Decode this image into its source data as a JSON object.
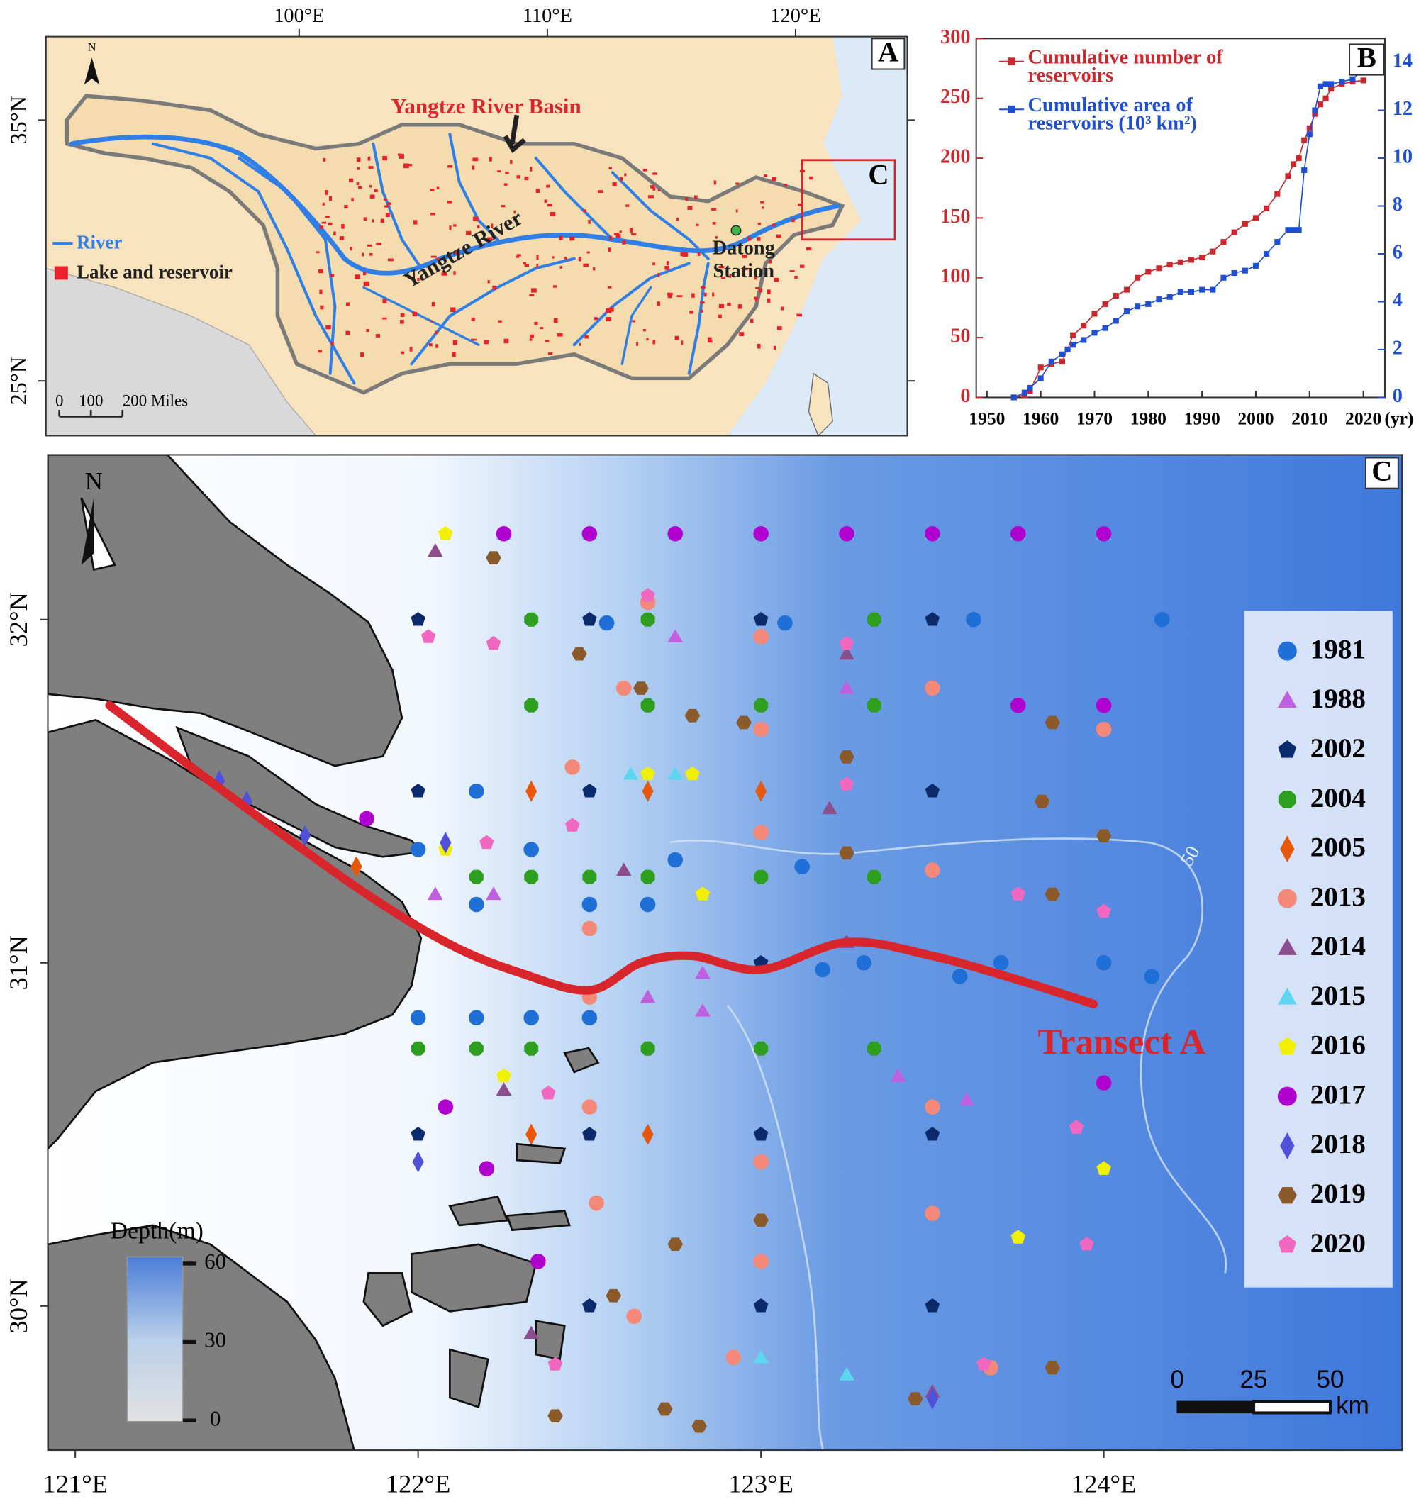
{
  "panel_a": {
    "label": "A",
    "box_label": "C",
    "title": "Yangtze River Basin",
    "river_label": "Yangtze River",
    "north": "N",
    "xlim": [
      89.8,
      124.5
    ],
    "ylim": [
      22.9,
      38.2
    ],
    "xticks": [
      {
        "value": 100,
        "label": "100°E"
      },
      {
        "value": 110,
        "label": "110°E"
      },
      {
        "value": 120,
        "label": "120°E"
      }
    ],
    "yticks": [
      {
        "value": 25,
        "label": "25°N"
      },
      {
        "value": 35,
        "label": "35°N"
      }
    ],
    "legend": [
      "River",
      "Lake and reservoir"
    ],
    "legend_colors": [
      "#2f7fe6",
      "#e8222a"
    ],
    "station": {
      "name": [
        "Datong",
        "Station"
      ],
      "lon": 117.6,
      "lat": 30.77,
      "color": "#3fb24a"
    },
    "scale_bar": [
      0,
      100,
      {
        "value": 200,
        "label": "200 Miles"
      }
    ]
  },
  "chart_data": {
    "type": "line",
    "label": "B",
    "x_label": "(yr)",
    "x": [
      1955,
      1957,
      1958,
      1960,
      1962,
      1964,
      1965,
      1966,
      1968,
      1970,
      1972,
      1974,
      1976,
      1978,
      1980,
      1982,
      1984,
      1986,
      1988,
      1990,
      1992,
      1994,
      1996,
      1998,
      2000,
      2002,
      2004,
      2006,
      2007,
      2008,
      2009,
      2010,
      2011,
      2012,
      2013,
      2014,
      2016,
      2018,
      2020
    ],
    "series": [
      {
        "name": "Cumulative number of reservoirs",
        "color": "#c8282e",
        "values": [
          0,
          2,
          5,
          25,
          28,
          30,
          40,
          52,
          60,
          70,
          78,
          85,
          90,
          100,
          105,
          108,
          111,
          113,
          115,
          117,
          122,
          130,
          138,
          145,
          150,
          158,
          170,
          185,
          195,
          200,
          215,
          225,
          237,
          245,
          250,
          258,
          262,
          264,
          265
        ]
      },
      {
        "name": "Cumulative area of reservoirs (10³ km²)",
        "color": "#1f4fd0",
        "axis": "y2",
        "values": [
          0,
          0.2,
          0.4,
          0.8,
          1.5,
          1.8,
          2.0,
          2.2,
          2.4,
          2.7,
          2.9,
          3.2,
          3.6,
          3.8,
          3.9,
          4.1,
          4.2,
          4.4,
          4.4,
          4.5,
          4.5,
          5.0,
          5.2,
          5.3,
          5.5,
          6.0,
          6.5,
          7.0,
          7.0,
          7.0,
          9.5,
          11.0,
          12.0,
          13.0,
          13.1,
          13.1,
          13.2,
          13.3,
          13.7
        ]
      }
    ],
    "xlim": [
      1948,
      2024
    ],
    "xticks": [
      1950,
      1960,
      1970,
      1980,
      1990,
      2000,
      2010,
      2020
    ],
    "ylim": [
      0,
      300
    ],
    "yticks": [
      0,
      50,
      100,
      150,
      200,
      250,
      300
    ],
    "y2lim": [
      0,
      15
    ],
    "y2ticks": [
      0,
      2,
      4,
      6,
      8,
      10,
      12,
      14
    ]
  },
  "panel_c": {
    "label": "C",
    "north": "N",
    "transect_label": "Transect A",
    "contour_label": "50",
    "xlim": [
      120.92,
      124.87
    ],
    "ylim": [
      29.58,
      32.48
    ],
    "xticks": [
      {
        "value": 121,
        "label": "121°E"
      },
      {
        "value": 122,
        "label": "122°E"
      },
      {
        "value": 123,
        "label": "123°E"
      },
      {
        "value": 124,
        "label": "124°E"
      }
    ],
    "yticks": [
      {
        "value": 30,
        "label": "30°N"
      },
      {
        "value": 31,
        "label": "31°N"
      },
      {
        "value": 32,
        "label": "32°N"
      }
    ],
    "transect": {
      "color": "#d9262c",
      "lon": [
        121.1,
        121.5,
        121.85,
        122.1,
        122.3,
        122.5,
        122.65,
        122.8,
        123.0,
        123.25,
        123.5,
        123.75,
        123.97
      ],
      "lat": [
        31.75,
        31.45,
        31.2,
        31.05,
        30.97,
        30.92,
        31.0,
        31.02,
        30.98,
        31.06,
        31.02,
        30.95,
        30.88
      ]
    },
    "colorbar": {
      "title": "Depth(m)",
      "lim": [
        0,
        60
      ],
      "ticks": [
        0,
        30,
        60
      ]
    },
    "scale_bar": {
      "ticks": [
        0,
        25,
        50
      ],
      "unit": "km"
    },
    "stations": [
      {
        "name": "1981",
        "marker": "circle",
        "color": "#1f6fd6",
        "lon": [
          122.55,
          123.07,
          123.62,
          124.17,
          123.12,
          123.18,
          123.3,
          123.58,
          123.7,
          124.0,
          124.14,
          122.0,
          122.17,
          122.33,
          122.5,
          122.17,
          122.33,
          122.5,
          122.67,
          122.75,
          122.0,
          122.17
        ],
        "lat": [
          31.99,
          31.99,
          32.0,
          32.0,
          31.28,
          30.98,
          31.0,
          30.96,
          31.0,
          31.0,
          30.96,
          30.84,
          30.84,
          30.84,
          30.84,
          31.5,
          31.33,
          31.17,
          31.17,
          31.3,
          31.33,
          31.17
        ]
      },
      {
        "name": "1988",
        "marker": "triangle",
        "color": "#c060e0",
        "lon": [
          122.25,
          122.75,
          123.25,
          122.05,
          122.22,
          122.83,
          122.83,
          122.67,
          123.4,
          123.6
        ],
        "lat": [
          32.25,
          31.95,
          31.8,
          31.2,
          31.2,
          30.97,
          30.86,
          30.9,
          30.67,
          30.6
        ]
      },
      {
        "name": "2002",
        "marker": "pentagon",
        "color": "#0a2a6b",
        "lon": [
          122.0,
          122.5,
          123.0,
          123.5,
          122.0,
          122.5,
          123.5,
          122.0,
          122.5,
          123.0,
          123.5,
          122.5,
          123.0,
          123.5,
          123.0
        ],
        "lat": [
          32.0,
          32.0,
          32.0,
          32.0,
          31.5,
          31.5,
          31.5,
          30.5,
          30.5,
          30.5,
          30.5,
          30.0,
          30.0,
          30.0,
          31.0
        ]
      },
      {
        "name": "2004",
        "marker": "octagon",
        "color": "#2e9e1e",
        "lon": [
          122.33,
          122.67,
          123.33,
          122.0,
          122.17,
          122.33,
          122.67,
          123.0,
          123.33,
          122.17,
          122.33,
          122.5,
          122.67,
          123.0,
          123.33,
          122.33,
          122.67,
          123.0,
          123.33
        ],
        "lat": [
          32.0,
          32.0,
          32.0,
          30.75,
          30.75,
          30.75,
          30.75,
          30.75,
          30.75,
          31.25,
          31.25,
          31.25,
          31.25,
          31.25,
          31.25,
          31.75,
          31.75,
          31.75,
          31.75
        ]
      },
      {
        "name": "2005",
        "marker": "diamond",
        "color": "#e8580c",
        "lon": [
          122.33,
          122.67,
          121.82,
          122.33,
          122.67,
          123.0
        ],
        "lat": [
          30.5,
          30.5,
          31.28,
          31.5,
          31.5,
          31.5
        ]
      },
      {
        "name": "2013",
        "marker": "circle",
        "color": "#f4897a",
        "lon": [
          122.67,
          123.0,
          122.6,
          123.0,
          123.5,
          124.0,
          122.45,
          123.0,
          123.5,
          122.5,
          122.5,
          122.5,
          123.0,
          123.5,
          124.0,
          122.52,
          123.0,
          123.5,
          122.63,
          122.92,
          123.67
        ],
        "lat": [
          32.05,
          31.95,
          31.8,
          31.68,
          31.8,
          31.68,
          31.57,
          31.38,
          31.27,
          31.1,
          30.9,
          30.58,
          30.42,
          30.58,
          30.65,
          30.3,
          30.13,
          30.27,
          29.97,
          29.85,
          29.82
        ]
      },
      {
        "name": "2014",
        "marker": "triangle",
        "color": "#8b4d8b",
        "lon": [
          122.05,
          122.25,
          122.33,
          122.6,
          123.2,
          123.25,
          123.25,
          123.5
        ],
        "lat": [
          32.2,
          30.63,
          29.92,
          31.27,
          31.45,
          31.9,
          31.06,
          29.75
        ]
      },
      {
        "name": "2015",
        "marker": "triangle",
        "color": "#5fd6f0",
        "lon": [
          122.25,
          122.5,
          122.75,
          123.0,
          123.25,
          123.5,
          123.75,
          124.0,
          122.62,
          122.75,
          123.25,
          123.0
        ],
        "lat": [
          32.25,
          32.25,
          32.25,
          32.25,
          32.25,
          32.25,
          32.25,
          32.25,
          31.55,
          31.55,
          29.8,
          29.85
        ]
      },
      {
        "name": "2016",
        "marker": "pentagon",
        "color": "#f0f000",
        "lon": [
          122.08,
          122.67,
          122.8,
          122.83,
          122.08,
          123.75,
          124.0,
          122.25
        ],
        "lat": [
          32.25,
          31.55,
          31.55,
          31.2,
          31.33,
          30.2,
          30.4,
          30.67
        ]
      },
      {
        "name": "2017",
        "marker": "circle",
        "color": "#b000d0",
        "lon": [
          121.85,
          122.08,
          122.2,
          122.35,
          122.25,
          122.5,
          122.75,
          123.0,
          123.25,
          123.5,
          123.75,
          124.0,
          123.75,
          124.0,
          124.0
        ],
        "lat": [
          31.42,
          30.58,
          30.4,
          30.13,
          32.25,
          32.25,
          32.25,
          32.25,
          32.25,
          32.25,
          32.25,
          32.25,
          31.75,
          31.75,
          30.65
        ]
      },
      {
        "name": "2018",
        "marker": "diamond",
        "color": "#5050d8",
        "lon": [
          121.5,
          121.67,
          121.42,
          122.0,
          123.5,
          122.08
        ],
        "lat": [
          31.47,
          31.37,
          31.53,
          30.42,
          29.73,
          31.35
        ]
      },
      {
        "name": "2019",
        "marker": "hexagon",
        "color": "#8b5a2b",
        "lon": [
          122.22,
          122.47,
          122.65,
          122.8,
          122.95,
          123.25,
          123.25,
          123.85,
          123.82,
          124.0,
          123.85,
          122.75,
          123.0,
          123.45,
          122.57,
          122.4,
          122.82,
          122.72,
          123.85
        ],
        "lat": [
          32.18,
          31.9,
          31.8,
          31.72,
          31.7,
          31.6,
          31.32,
          31.7,
          31.47,
          31.37,
          31.2,
          30.18,
          30.25,
          29.73,
          30.03,
          29.68,
          29.65,
          29.7,
          29.82
        ]
      },
      {
        "name": "2020",
        "marker": "pentagon",
        "color": "#f068c0",
        "lon": [
          122.03,
          122.22,
          122.67,
          123.25,
          123.25,
          122.38,
          122.4,
          123.65,
          123.75,
          124.0,
          123.92,
          123.95,
          122.45,
          122.2
        ],
        "lat": [
          31.95,
          31.93,
          32.07,
          31.93,
          31.52,
          30.62,
          29.83,
          29.83,
          31.2,
          31.15,
          30.52,
          30.18,
          31.4,
          31.35
        ]
      }
    ]
  }
}
